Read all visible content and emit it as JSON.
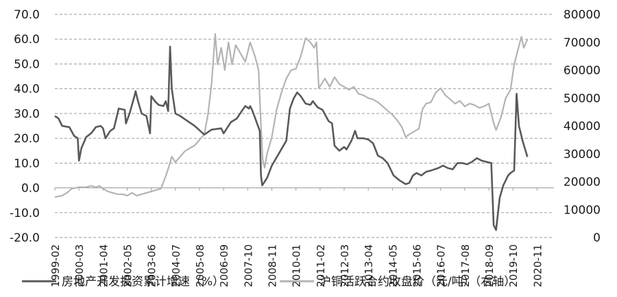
{
  "chart_data": {
    "type": "line",
    "x_categories": [
      "1999-02",
      "2000-03",
      "2001-04",
      "2002-05",
      "2003-06",
      "2004-07",
      "2005-08",
      "2006-09",
      "2007-10",
      "2008-11",
      "2010-01",
      "2011-02",
      "2012-03",
      "2013-04",
      "2014-05",
      "2015-06",
      "2016-07",
      "2017-08",
      "2018-09",
      "2019-10",
      "2020-11"
    ],
    "y_left": {
      "ticks": [
        "70.0",
        "60.0",
        "50.0",
        "40.0",
        "30.0",
        "20.0",
        "10.0",
        "0.0",
        "-10.0",
        "-20.0"
      ],
      "ylim": [
        -20,
        70
      ]
    },
    "y_right": {
      "ticks": [
        "80000",
        "70000",
        "60000",
        "50000",
        "40000",
        "30000",
        "20000",
        "10000",
        "0"
      ],
      "ylim": [
        0,
        80000
      ]
    },
    "grid": true,
    "legend_position": "bottom",
    "series": [
      {
        "name": "房地产开发投资累计增速（%）",
        "axis": "left",
        "color": "#595959",
        "points": [
          [
            0,
            29
          ],
          [
            0.15,
            28
          ],
          [
            0.3,
            25
          ],
          [
            0.6,
            24.5
          ],
          [
            0.8,
            21
          ],
          [
            0.95,
            20
          ],
          [
            1.0,
            11
          ],
          [
            1.1,
            16
          ],
          [
            1.3,
            20.5
          ],
          [
            1.5,
            22
          ],
          [
            1.7,
            24.5
          ],
          [
            1.9,
            25
          ],
          [
            2.0,
            24
          ],
          [
            2.1,
            20
          ],
          [
            2.3,
            23
          ],
          [
            2.45,
            24
          ],
          [
            2.65,
            32
          ],
          [
            2.9,
            31.5
          ],
          [
            2.95,
            26
          ],
          [
            3.1,
            30
          ],
          [
            3.3,
            37
          ],
          [
            3.35,
            39
          ],
          [
            3.45,
            35
          ],
          [
            3.6,
            30
          ],
          [
            3.8,
            29
          ],
          [
            3.95,
            22
          ],
          [
            4.0,
            37
          ],
          [
            4.15,
            35
          ],
          [
            4.3,
            33.5
          ],
          [
            4.5,
            33
          ],
          [
            4.6,
            35
          ],
          [
            4.7,
            31
          ],
          [
            4.78,
            57
          ],
          [
            4.85,
            40
          ],
          [
            5.0,
            30
          ],
          [
            5.2,
            29
          ],
          [
            5.5,
            27
          ],
          [
            5.8,
            25
          ],
          [
            6.2,
            21.5
          ],
          [
            6.5,
            23.5
          ],
          [
            6.9,
            24
          ],
          [
            7.0,
            22
          ],
          [
            7.3,
            26.5
          ],
          [
            7.55,
            28
          ],
          [
            7.75,
            31
          ],
          [
            7.9,
            33
          ],
          [
            8.05,
            32
          ],
          [
            8.1,
            33
          ],
          [
            8.2,
            31
          ],
          [
            8.5,
            23
          ],
          [
            8.55,
            5
          ],
          [
            8.6,
            1
          ],
          [
            8.8,
            4
          ],
          [
            9.0,
            9
          ],
          [
            9.3,
            14
          ],
          [
            9.45,
            16.5
          ],
          [
            9.6,
            19
          ],
          [
            9.75,
            32
          ],
          [
            9.9,
            36
          ],
          [
            10.05,
            38.5
          ],
          [
            10.2,
            37
          ],
          [
            10.4,
            34
          ],
          [
            10.6,
            33.5
          ],
          [
            10.7,
            35
          ],
          [
            10.9,
            32.5
          ],
          [
            11.1,
            31.5
          ],
          [
            11.35,
            27
          ],
          [
            11.5,
            26
          ],
          [
            11.6,
            17
          ],
          [
            11.8,
            15
          ],
          [
            12.0,
            16.5
          ],
          [
            12.1,
            15.5
          ],
          [
            12.3,
            19
          ],
          [
            12.45,
            23
          ],
          [
            12.55,
            20
          ],
          [
            12.8,
            20
          ],
          [
            13.0,
            19.5
          ],
          [
            13.2,
            18
          ],
          [
            13.4,
            13
          ],
          [
            13.6,
            12
          ],
          [
            13.8,
            10
          ],
          [
            14.05,
            5
          ],
          [
            14.3,
            3
          ],
          [
            14.55,
            1.5
          ],
          [
            14.7,
            2
          ],
          [
            14.85,
            5
          ],
          [
            15.0,
            6
          ],
          [
            15.2,
            5
          ],
          [
            15.4,
            6.5
          ],
          [
            15.6,
            7
          ],
          [
            15.9,
            8
          ],
          [
            16.1,
            9
          ],
          [
            16.3,
            8
          ],
          [
            16.5,
            7.5
          ],
          [
            16.7,
            10
          ],
          [
            16.9,
            10
          ],
          [
            17.1,
            9.5
          ],
          [
            17.3,
            10.5
          ],
          [
            17.5,
            12
          ],
          [
            17.7,
            11
          ],
          [
            17.9,
            10.5
          ],
          [
            18.1,
            10
          ],
          [
            18.2,
            -15
          ],
          [
            18.3,
            -17
          ],
          [
            18.45,
            -4
          ],
          [
            18.6,
            1
          ],
          [
            18.8,
            5
          ],
          [
            18.9,
            6
          ],
          [
            19.05,
            7
          ],
          [
            19.15,
            38
          ],
          [
            19.25,
            25
          ],
          [
            19.4,
            19
          ],
          [
            19.6,
            12.5
          ]
        ]
      },
      {
        "name": "沪铜活跃合约收盘价（元/吨）（右轴）",
        "axis": "right",
        "color": "#b3b3b3",
        "points": [
          [
            0,
            14500
          ],
          [
            0.3,
            15000
          ],
          [
            0.5,
            16000
          ],
          [
            0.7,
            17500
          ],
          [
            1.0,
            18000
          ],
          [
            1.3,
            18000
          ],
          [
            1.5,
            18500
          ],
          [
            1.7,
            18000
          ],
          [
            1.85,
            18500
          ],
          [
            2.0,
            17500
          ],
          [
            2.2,
            16500
          ],
          [
            2.4,
            16000
          ],
          [
            2.6,
            15500
          ],
          [
            2.8,
            15500
          ],
          [
            3.0,
            15000
          ],
          [
            3.2,
            16000
          ],
          [
            3.4,
            15000
          ],
          [
            3.6,
            15500
          ],
          [
            3.8,
            16000
          ],
          [
            4.0,
            16500
          ],
          [
            4.2,
            17000
          ],
          [
            4.4,
            17500
          ],
          [
            4.6,
            22000
          ],
          [
            4.75,
            26000
          ],
          [
            4.85,
            29000
          ],
          [
            5.0,
            27000
          ],
          [
            5.2,
            29000
          ],
          [
            5.4,
            31000
          ],
          [
            5.6,
            32000
          ],
          [
            5.8,
            33000
          ],
          [
            6.0,
            35000
          ],
          [
            6.2,
            37000
          ],
          [
            6.35,
            44000
          ],
          [
            6.5,
            55000
          ],
          [
            6.65,
            73000
          ],
          [
            6.75,
            62000
          ],
          [
            6.9,
            68000
          ],
          [
            7.05,
            60000
          ],
          [
            7.2,
            70000
          ],
          [
            7.35,
            62000
          ],
          [
            7.5,
            69000
          ],
          [
            7.7,
            66000
          ],
          [
            7.9,
            63000
          ],
          [
            8.1,
            70000
          ],
          [
            8.3,
            65000
          ],
          [
            8.45,
            60000
          ],
          [
            8.55,
            40000
          ],
          [
            8.62,
            28000
          ],
          [
            8.7,
            25000
          ],
          [
            8.8,
            30000
          ],
          [
            9.0,
            36000
          ],
          [
            9.2,
            46000
          ],
          [
            9.4,
            52000
          ],
          [
            9.6,
            57000
          ],
          [
            9.8,
            60000
          ],
          [
            10.0,
            60500
          ],
          [
            10.2,
            65000
          ],
          [
            10.4,
            71500
          ],
          [
            10.6,
            70000
          ],
          [
            10.75,
            68000
          ],
          [
            10.85,
            70000
          ],
          [
            10.95,
            53500
          ],
          [
            11.2,
            57000
          ],
          [
            11.4,
            54000
          ],
          [
            11.6,
            57500
          ],
          [
            11.8,
            55000
          ],
          [
            12.0,
            54000
          ],
          [
            12.2,
            53000
          ],
          [
            12.4,
            54000
          ],
          [
            12.6,
            51500
          ],
          [
            12.8,
            51000
          ],
          [
            13.0,
            50000
          ],
          [
            13.2,
            49500
          ],
          [
            13.4,
            48500
          ],
          [
            13.6,
            47000
          ],
          [
            13.8,
            45500
          ],
          [
            14.0,
            44000
          ],
          [
            14.2,
            42000
          ],
          [
            14.4,
            39500
          ],
          [
            14.55,
            36000
          ],
          [
            14.7,
            37000
          ],
          [
            14.9,
            38000
          ],
          [
            15.1,
            39000
          ],
          [
            15.25,
            46000
          ],
          [
            15.4,
            48000
          ],
          [
            15.6,
            48500
          ],
          [
            15.8,
            52000
          ],
          [
            16.0,
            53500
          ],
          [
            16.2,
            51000
          ],
          [
            16.4,
            49500
          ],
          [
            16.6,
            48000
          ],
          [
            16.8,
            49000
          ],
          [
            17.0,
            47000
          ],
          [
            17.2,
            48000
          ],
          [
            17.4,
            47500
          ],
          [
            17.6,
            46500
          ],
          [
            17.8,
            47000
          ],
          [
            18.0,
            48000
          ],
          [
            18.2,
            41000
          ],
          [
            18.3,
            38500
          ],
          [
            18.5,
            43000
          ],
          [
            18.7,
            50000
          ],
          [
            18.9,
            53000
          ],
          [
            19.05,
            62000
          ],
          [
            19.2,
            67000
          ],
          [
            19.35,
            72000
          ],
          [
            19.45,
            68000
          ],
          [
            19.6,
            71000
          ]
        ]
      }
    ]
  }
}
